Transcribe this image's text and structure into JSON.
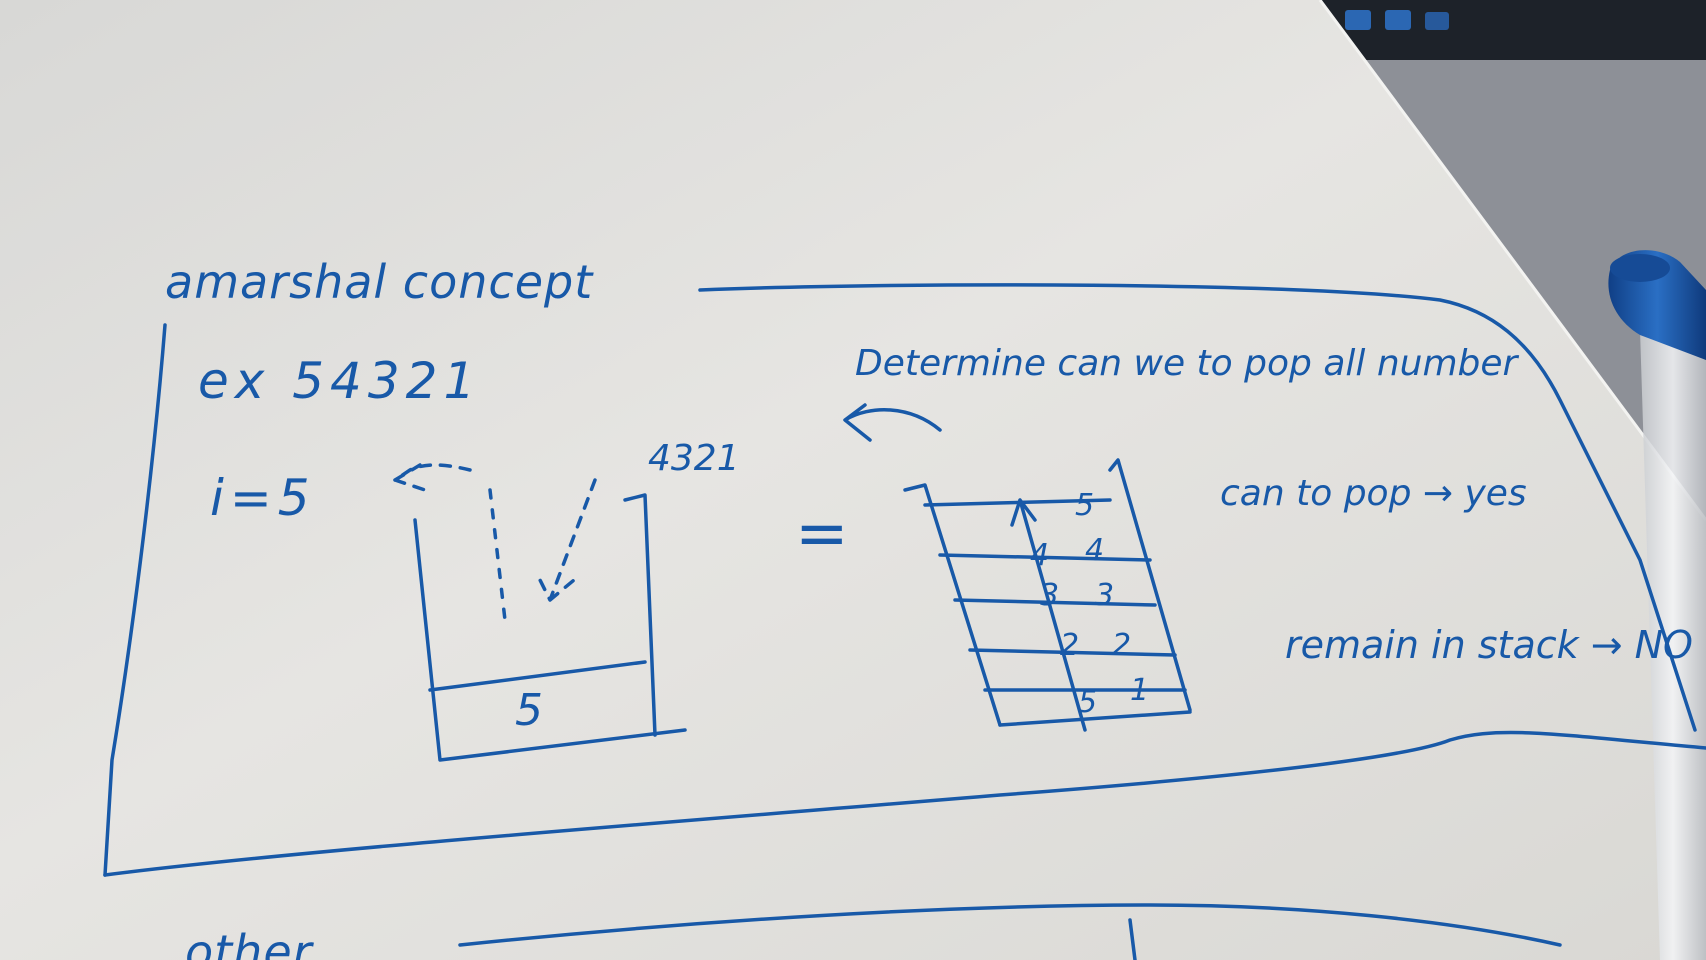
{
  "notes": {
    "title": "amarshal concept",
    "example": "ex 54321",
    "index": "i=5",
    "incoming": "4321",
    "stack_bottom": "5",
    "equals": "=",
    "question": "Determine can we to pop all number",
    "answer_yes": "can to pop → yes",
    "answer_no": "remain in stack → NO",
    "column": [
      "5",
      "4",
      "3",
      "2",
      "1"
    ],
    "column_inner": [
      "4",
      "3",
      "2",
      "5"
    ],
    "bottom_fragment": "other"
  },
  "colors": {
    "ink": "#1859a8",
    "paper": "#e4e3e0",
    "pen_cap": "#1d5fb4"
  }
}
